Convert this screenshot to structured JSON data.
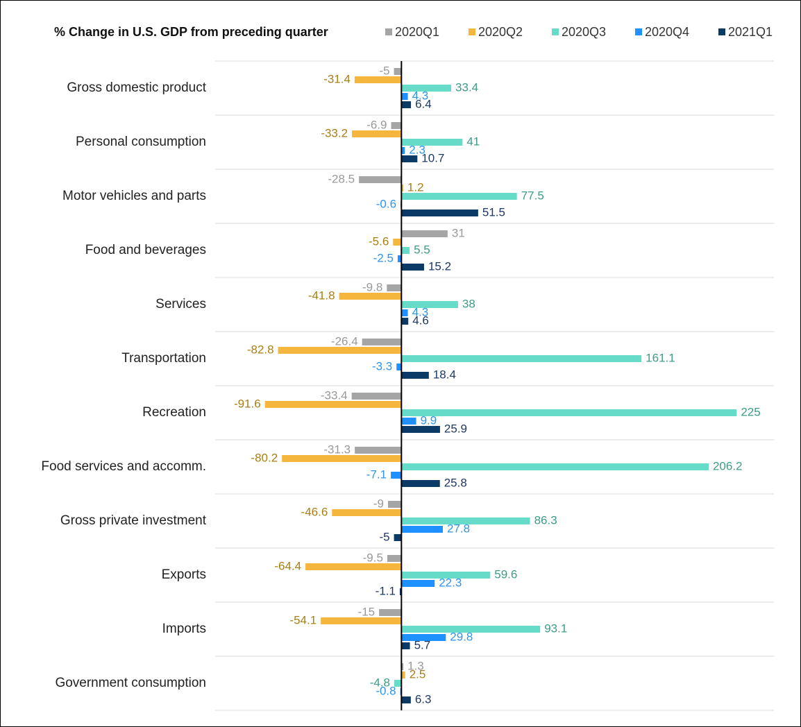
{
  "chart_data": {
    "type": "bar",
    "orientation": "horizontal",
    "title": "% Change in U.S. GDP from preceding quarter",
    "categories": [
      "Gross domestic product",
      "Personal consumption",
      "Motor vehicles and parts",
      "Food and beverages",
      "Services",
      "Transportation",
      "Recreation",
      "Food services and accomm.",
      "Gross private investment",
      "Exports",
      "Imports",
      "Government consumption"
    ],
    "series": [
      {
        "name": "2020Q1",
        "color": "#a5a5a5",
        "values": [
          -5,
          -6.9,
          -28.5,
          31,
          -9.8,
          -26.4,
          -33.4,
          -31.3,
          -9,
          -9.5,
          -15,
          1.3
        ]
      },
      {
        "name": "2020Q2",
        "color": "#f4b63c",
        "values": [
          -31.4,
          -33.2,
          1.2,
          -5.6,
          -41.8,
          -82.8,
          -91.6,
          -80.2,
          -46.6,
          -64.4,
          -54.1,
          2.5
        ]
      },
      {
        "name": "2020Q3",
        "color": "#66dbc8",
        "values": [
          33.4,
          41,
          77.5,
          5.5,
          38,
          161.1,
          225,
          206.2,
          86.3,
          59.6,
          93.1,
          -4.8
        ]
      },
      {
        "name": "2020Q4",
        "color": "#1e90ff",
        "values": [
          4.3,
          2.3,
          -0.6,
          -2.5,
          4.3,
          -3.3,
          9.9,
          -7.1,
          27.8,
          22.3,
          29.8,
          -0.8
        ]
      },
      {
        "name": "2021Q1",
        "color": "#0b3a66",
        "values": [
          6.4,
          10.7,
          51.5,
          15.2,
          4.6,
          18.4,
          25.9,
          25.8,
          -5,
          -1.1,
          5.7,
          6.3
        ]
      }
    ],
    "xlim": [
      -125,
      250
    ],
    "legend": "top",
    "data_labels": true
  }
}
